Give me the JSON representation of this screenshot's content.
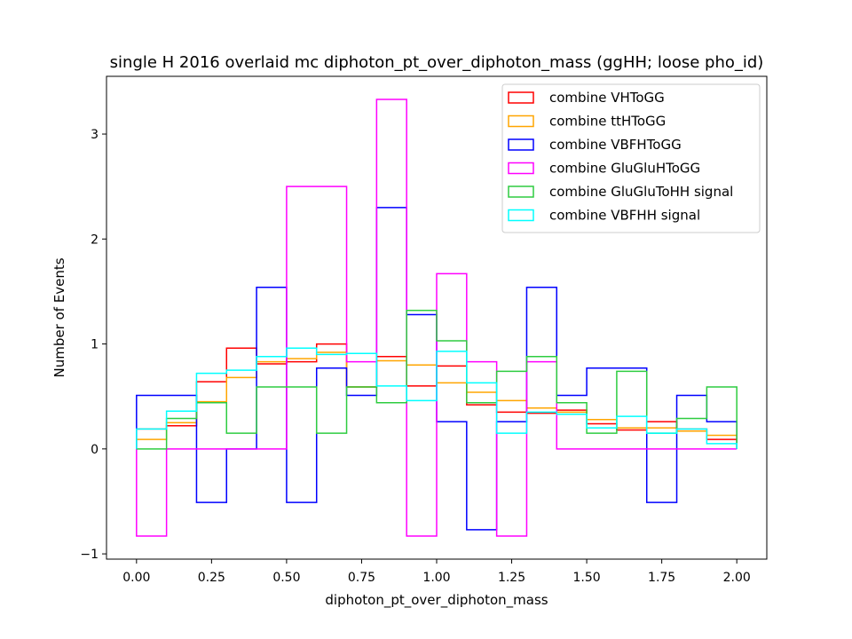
{
  "chart_data": {
    "type": "step-histogram",
    "title": "single H 2016 overlaid mc diphoton_pt_over_diphoton_mass (ggHH; loose pho_id)",
    "xlabel": "diphoton_pt_over_diphoton_mass",
    "ylabel": "Number of Events",
    "xlim": [
      -0.1,
      2.1
    ],
    "ylim": [
      -1.05,
      3.55
    ],
    "xticks": [
      0.0,
      0.25,
      0.5,
      0.75,
      1.0,
      1.25,
      1.5,
      1.75,
      2.0
    ],
    "xtick_labels": [
      "0.00",
      "0.25",
      "0.50",
      "0.75",
      "1.00",
      "1.25",
      "1.50",
      "1.75",
      "2.00"
    ],
    "yticks": [
      -1,
      0,
      1,
      2,
      3
    ],
    "ytick_labels": [
      "−1",
      "0",
      "1",
      "2",
      "3"
    ],
    "bin_edges": [
      0.0,
      0.1,
      0.2,
      0.3,
      0.4,
      0.5,
      0.6,
      0.7,
      0.8,
      0.9,
      1.0,
      1.1,
      1.2,
      1.3,
      1.4,
      1.5,
      1.6,
      1.7,
      1.8,
      1.9,
      2.0
    ],
    "legend_position": "upper right",
    "series": [
      {
        "name": "combine VHToGG",
        "color": "#ff0000",
        "values": [
          0.19,
          0.22,
          0.64,
          0.96,
          0.81,
          0.83,
          1.0,
          0.59,
          0.88,
          0.6,
          0.79,
          0.42,
          0.35,
          0.34,
          0.37,
          0.24,
          0.18,
          0.26,
          0.19,
          0.09
        ]
      },
      {
        "name": "combine ttHToGG",
        "color": "#ffa500",
        "values": [
          0.09,
          0.25,
          0.45,
          0.68,
          0.83,
          0.86,
          0.92,
          0.59,
          0.84,
          0.8,
          0.63,
          0.54,
          0.46,
          0.39,
          0.35,
          0.28,
          0.2,
          0.2,
          0.17,
          0.13
        ]
      },
      {
        "name": "combine VBFHToGG",
        "color": "#0000ff",
        "values": [
          0.51,
          0.51,
          -0.51,
          0.0,
          1.54,
          -0.51,
          0.77,
          0.51,
          2.3,
          1.28,
          0.26,
          -0.77,
          0.26,
          1.54,
          0.51,
          0.77,
          0.77,
          -0.51,
          0.51,
          0.26
        ]
      },
      {
        "name": "combine GluGluHToGG",
        "color": "#ff00ff",
        "values": [
          -0.83,
          0.0,
          0.0,
          0.0,
          0.0,
          2.5,
          2.5,
          0.83,
          3.33,
          -0.83,
          1.67,
          0.83,
          -0.83,
          0.83,
          0.0,
          0.0,
          0.0,
          0.0,
          0.0,
          0.0
        ]
      },
      {
        "name": "combine GluGluToHH signal",
        "color": "#2ecc40",
        "values": [
          0.0,
          0.29,
          0.44,
          0.15,
          0.59,
          0.59,
          0.15,
          0.59,
          0.44,
          1.32,
          1.03,
          0.44,
          0.74,
          0.88,
          0.44,
          0.15,
          0.74,
          0.15,
          0.29,
          0.59
        ]
      },
      {
        "name": "combine VBFHH signal",
        "color": "#00ffff",
        "values": [
          0.19,
          0.36,
          0.72,
          0.75,
          0.88,
          0.96,
          0.9,
          0.91,
          0.6,
          0.46,
          0.93,
          0.63,
          0.15,
          0.35,
          0.33,
          0.2,
          0.31,
          0.15,
          0.19,
          0.05
        ]
      }
    ]
  }
}
